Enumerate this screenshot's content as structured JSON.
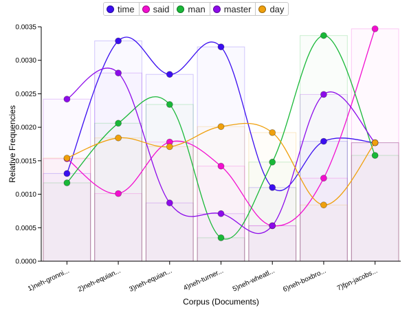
{
  "chart_data": {
    "type": "line",
    "title": "",
    "xlabel": "Corpus (Documents)",
    "ylabel": "Relative Frequencies",
    "ylim": [
      0,
      0.0035
    ],
    "yticks": [
      "0.0000",
      "0.0005",
      "0.0010",
      "0.0015",
      "0.0020",
      "0.0025",
      "0.0030",
      "0.0035"
    ],
    "categories": [
      "1)neh-gronni...",
      "2)neh-equian...",
      "3)neh-equian...",
      "4)neh-turner...",
      "5)neh-wheatl...",
      "6)neh-boxbro...",
      "7)fpn-jacobs..."
    ],
    "legend_position": "top",
    "series": [
      {
        "name": "time",
        "color": "#3b0ef0",
        "values": [
          0.00131,
          0.00329,
          0.00279,
          0.0032,
          0.0011,
          0.00179,
          0.00177
        ]
      },
      {
        "name": "said",
        "color": "#f20ecf",
        "values": [
          0.00153,
          0.00101,
          0.00178,
          0.00142,
          0.00053,
          0.00124,
          0.00347
        ]
      },
      {
        "name": "man",
        "color": "#19b838",
        "values": [
          0.00117,
          0.00206,
          0.00234,
          0.00035,
          0.00148,
          0.00337,
          0.00158
        ]
      },
      {
        "name": "master",
        "color": "#8d0bea",
        "values": [
          0.00242,
          0.00281,
          0.00087,
          0.00071,
          0.00053,
          0.00249,
          0.00177
        ]
      },
      {
        "name": "day",
        "color": "#efa00d",
        "values": [
          0.00154,
          0.00184,
          0.00171,
          0.00201,
          0.00192,
          0.00084,
          0.00177
        ]
      }
    ]
  }
}
